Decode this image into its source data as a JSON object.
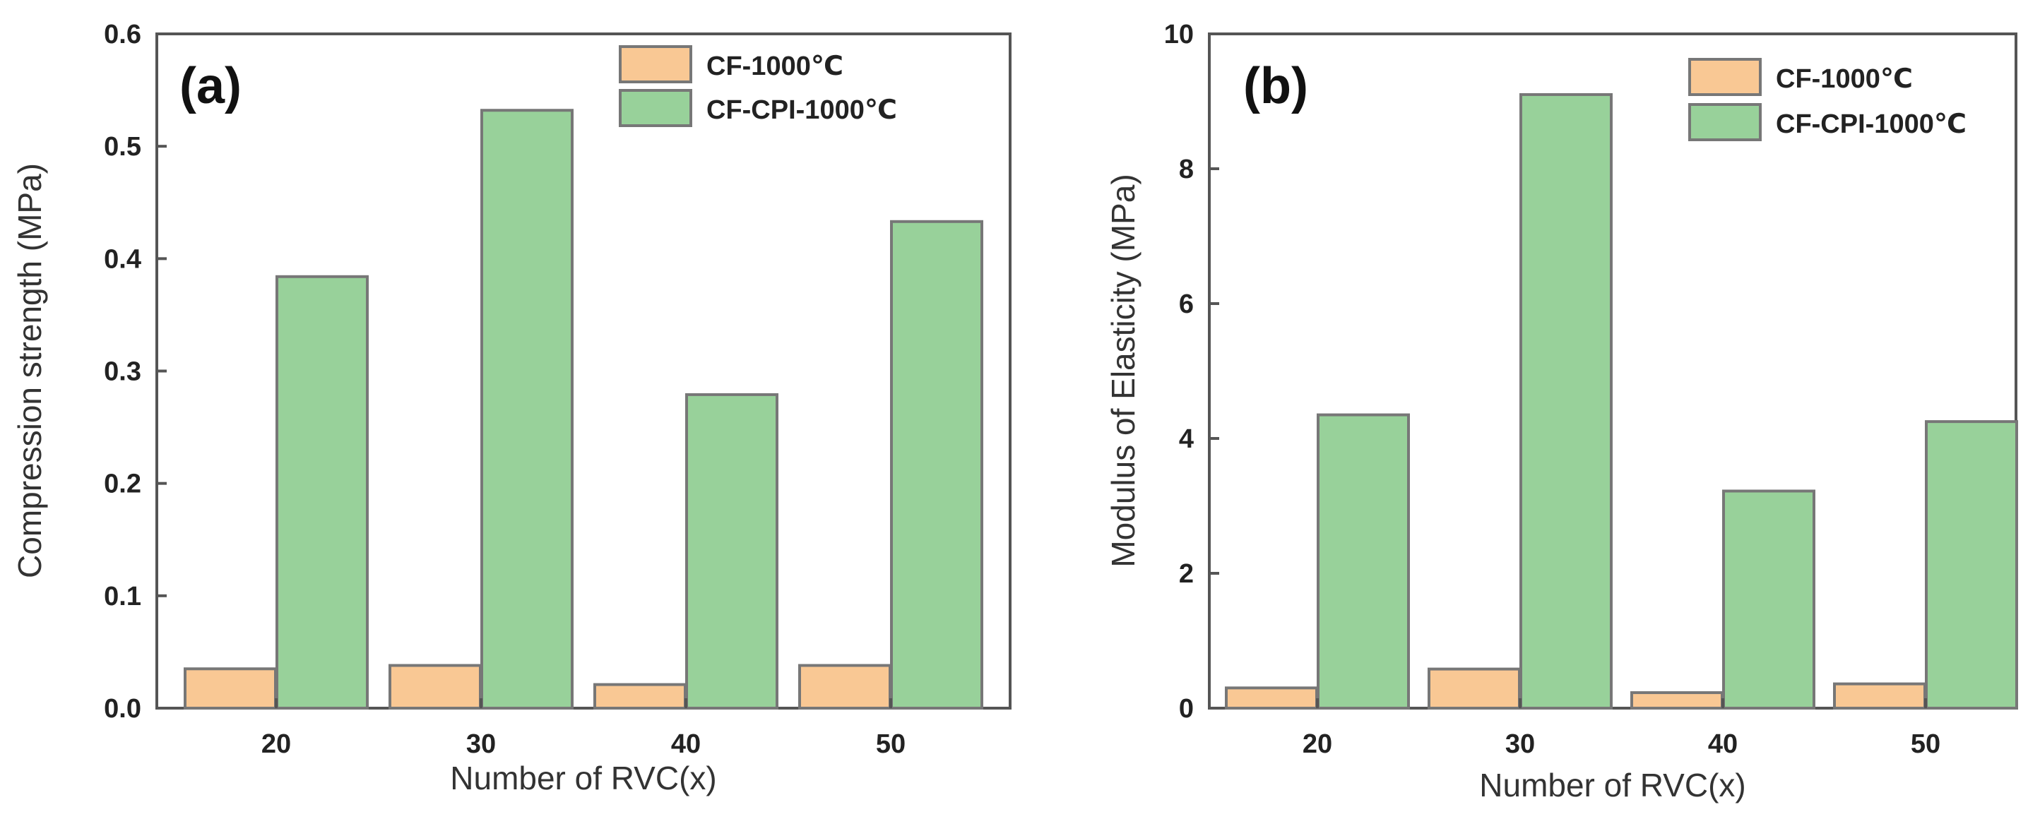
{
  "chart_data": [
    {
      "type": "bar",
      "panel_label": "(a)",
      "categories": [
        "20",
        "30",
        "40",
        "50"
      ],
      "series": [
        {
          "name": "CF-1000℃",
          "values": [
            0.035,
            0.038,
            0.021,
            0.038
          ],
          "color": "#f9c894"
        },
        {
          "name": "CF-CPI-1000℃",
          "values": [
            0.384,
            0.532,
            0.279,
            0.433
          ],
          "color": "#98d19a"
        }
      ],
      "xlabel": "Number of RVC(x)",
      "ylabel": "Compression strength (MPa)",
      "ylim": [
        0,
        0.6
      ],
      "yticks": [
        "0.0",
        "0.1",
        "0.2",
        "0.3",
        "0.4",
        "0.5",
        "0.6"
      ],
      "legend": "top-right",
      "grid": false
    },
    {
      "type": "bar",
      "panel_label": "(b)",
      "categories": [
        "20",
        "30",
        "40",
        "50"
      ],
      "series": [
        {
          "name": "CF-1000℃",
          "values": [
            0.3,
            0.58,
            0.23,
            0.36
          ],
          "color": "#f9c894"
        },
        {
          "name": "CF-CPI-1000℃",
          "values": [
            4.35,
            9.1,
            3.22,
            4.25
          ],
          "color": "#98d19a"
        }
      ],
      "xlabel": "Number of RVC(x)",
      "ylabel": "Modulus of Elasticity (MPa)",
      "ylim": [
        0,
        10
      ],
      "yticks": [
        "0",
        "2",
        "4",
        "6",
        "8",
        "10"
      ],
      "legend": "top-right",
      "grid": false
    }
  ]
}
